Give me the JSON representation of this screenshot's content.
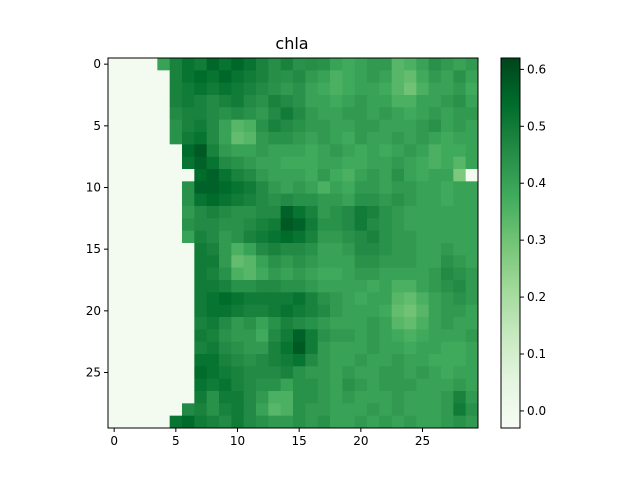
{
  "chart_data": {
    "type": "heatmap",
    "title": "chla",
    "xlabel": "",
    "ylabel": "",
    "rows": 30,
    "cols": 30,
    "x_ticks": [
      0,
      5,
      10,
      15,
      20,
      25
    ],
    "y_ticks": [
      0,
      5,
      10,
      15,
      20,
      25
    ],
    "colormap": "Greens",
    "colormap_stops": [
      "#f7fcf5",
      "#e5f5e0",
      "#c7e9c0",
      "#a1d99b",
      "#74c476",
      "#41ab5d",
      "#238b45",
      "#006d2c",
      "#00441b"
    ],
    "vmin": -0.03,
    "vmax": 0.62,
    "colorbar_ticks": [
      "0.0",
      "0.1",
      "0.2",
      "0.3",
      "0.4",
      "0.5",
      "0.6"
    ],
    "values": [
      [
        -0.01,
        -0.01,
        -0.01,
        -0.01,
        0.4,
        0.48,
        0.52,
        0.5,
        0.55,
        0.52,
        0.55,
        0.52,
        0.48,
        0.45,
        0.48,
        0.44,
        0.45,
        0.44,
        0.4,
        0.38,
        0.4,
        0.42,
        0.42,
        0.34,
        0.36,
        0.4,
        0.44,
        0.42,
        0.4,
        0.42
      ],
      [
        -0.01,
        -0.01,
        -0.01,
        -0.01,
        -0.01,
        0.48,
        0.52,
        0.54,
        0.52,
        0.55,
        0.52,
        0.5,
        0.48,
        0.45,
        0.44,
        0.46,
        0.42,
        0.4,
        0.36,
        0.38,
        0.4,
        0.42,
        0.4,
        0.34,
        0.32,
        0.38,
        0.42,
        0.4,
        0.44,
        0.4
      ],
      [
        -0.01,
        -0.01,
        -0.01,
        -0.01,
        -0.01,
        0.48,
        0.5,
        0.52,
        0.5,
        0.52,
        0.5,
        0.48,
        0.46,
        0.44,
        0.42,
        0.44,
        0.4,
        0.38,
        0.36,
        0.38,
        0.4,
        0.4,
        0.38,
        0.34,
        0.3,
        0.36,
        0.4,
        0.4,
        0.42,
        0.38
      ],
      [
        -0.01,
        -0.01,
        -0.01,
        -0.01,
        -0.01,
        0.48,
        0.5,
        0.48,
        0.46,
        0.48,
        0.5,
        0.46,
        0.44,
        0.48,
        0.46,
        0.44,
        0.4,
        0.4,
        0.38,
        0.4,
        0.42,
        0.4,
        0.4,
        0.36,
        0.36,
        0.4,
        0.4,
        0.42,
        0.44,
        0.4
      ],
      [
        -0.01,
        -0.01,
        -0.01,
        -0.01,
        -0.01,
        0.46,
        0.48,
        0.48,
        0.46,
        0.44,
        0.46,
        0.44,
        0.42,
        0.46,
        0.5,
        0.46,
        0.42,
        0.4,
        0.4,
        0.42,
        0.42,
        0.4,
        0.42,
        0.4,
        0.38,
        0.4,
        0.42,
        0.4,
        0.42,
        0.42
      ],
      [
        -0.01,
        -0.01,
        -0.01,
        -0.01,
        -0.01,
        0.44,
        0.48,
        0.5,
        0.46,
        0.4,
        0.34,
        0.36,
        0.44,
        0.48,
        0.46,
        0.44,
        0.42,
        0.42,
        0.4,
        0.4,
        0.42,
        0.42,
        0.4,
        0.4,
        0.4,
        0.42,
        0.44,
        0.4,
        0.42,
        0.4
      ],
      [
        -0.01,
        -0.01,
        -0.01,
        -0.01,
        -0.01,
        0.44,
        0.5,
        0.52,
        0.46,
        0.4,
        0.32,
        0.34,
        0.42,
        0.44,
        0.44,
        0.42,
        0.4,
        0.42,
        0.4,
        0.38,
        0.42,
        0.4,
        0.4,
        0.42,
        0.4,
        0.42,
        0.4,
        0.38,
        0.4,
        0.4
      ],
      [
        -0.01,
        -0.01,
        -0.01,
        -0.01,
        -0.01,
        -0.01,
        0.54,
        0.58,
        0.48,
        0.42,
        0.4,
        0.4,
        0.42,
        0.4,
        0.4,
        0.4,
        0.38,
        0.4,
        0.42,
        0.4,
        0.38,
        0.4,
        0.38,
        0.4,
        0.42,
        0.4,
        0.36,
        0.38,
        0.38,
        0.4
      ],
      [
        -0.01,
        -0.01,
        -0.01,
        -0.01,
        -0.01,
        -0.01,
        0.52,
        0.56,
        0.52,
        0.46,
        0.44,
        0.42,
        0.4,
        0.4,
        0.38,
        0.38,
        0.38,
        0.4,
        0.4,
        0.38,
        0.38,
        0.4,
        0.4,
        0.42,
        0.4,
        0.38,
        0.36,
        0.38,
        0.34,
        0.4
      ],
      [
        -0.01,
        -0.01,
        -0.01,
        -0.01,
        -0.01,
        -0.01,
        -0.01,
        0.54,
        0.56,
        0.52,
        0.48,
        0.46,
        0.42,
        0.4,
        0.4,
        0.4,
        0.38,
        0.42,
        0.38,
        0.36,
        0.4,
        0.42,
        0.4,
        0.44,
        0.4,
        0.38,
        0.4,
        0.4,
        0.28,
        -0.01
      ],
      [
        -0.01,
        -0.01,
        -0.01,
        -0.01,
        -0.01,
        -0.01,
        0.44,
        0.56,
        0.56,
        0.54,
        0.52,
        0.5,
        0.46,
        0.42,
        0.4,
        0.42,
        0.4,
        0.36,
        0.4,
        0.38,
        0.42,
        0.42,
        0.4,
        0.42,
        0.42,
        0.4,
        0.4,
        0.38,
        0.4,
        0.4
      ],
      [
        -0.01,
        -0.01,
        -0.01,
        -0.01,
        -0.01,
        -0.01,
        0.44,
        0.52,
        0.54,
        0.52,
        0.5,
        0.48,
        0.46,
        0.44,
        0.46,
        0.44,
        0.44,
        0.42,
        0.42,
        0.4,
        0.44,
        0.44,
        0.42,
        0.44,
        0.42,
        0.4,
        0.4,
        0.38,
        0.4,
        0.4
      ],
      [
        -0.01,
        -0.01,
        -0.01,
        -0.01,
        -0.01,
        -0.01,
        0.42,
        0.46,
        0.48,
        0.46,
        0.44,
        0.44,
        0.46,
        0.46,
        0.56,
        0.52,
        0.48,
        0.42,
        0.44,
        0.46,
        0.5,
        0.48,
        0.44,
        0.42,
        0.4,
        0.4,
        0.4,
        0.4,
        0.4,
        0.4
      ],
      [
        -0.01,
        -0.01,
        -0.01,
        -0.01,
        -0.01,
        -0.01,
        0.44,
        0.46,
        0.46,
        0.44,
        0.44,
        0.46,
        0.48,
        0.5,
        0.58,
        0.56,
        0.5,
        0.44,
        0.44,
        0.46,
        0.5,
        0.46,
        0.44,
        0.42,
        0.4,
        0.4,
        0.4,
        0.4,
        0.4,
        0.4
      ],
      [
        -0.01,
        -0.01,
        -0.01,
        -0.01,
        -0.01,
        -0.01,
        0.4,
        0.48,
        0.46,
        0.42,
        0.44,
        0.48,
        0.5,
        0.52,
        0.54,
        0.52,
        0.48,
        0.42,
        0.42,
        0.44,
        0.46,
        0.48,
        0.44,
        0.42,
        0.42,
        0.4,
        0.4,
        0.4,
        0.4,
        0.4
      ],
      [
        -0.01,
        -0.01,
        -0.01,
        -0.01,
        -0.01,
        -0.01,
        -0.01,
        0.5,
        0.48,
        0.42,
        0.36,
        0.4,
        0.46,
        0.48,
        0.46,
        0.46,
        0.44,
        0.4,
        0.4,
        0.42,
        0.46,
        0.46,
        0.44,
        0.42,
        0.42,
        0.4,
        0.4,
        0.42,
        0.4,
        0.4
      ],
      [
        -0.01,
        -0.01,
        -0.01,
        -0.01,
        -0.01,
        -0.01,
        -0.01,
        0.5,
        0.5,
        0.42,
        0.32,
        0.34,
        0.4,
        0.44,
        0.42,
        0.44,
        0.42,
        0.4,
        0.4,
        0.4,
        0.44,
        0.44,
        0.42,
        0.42,
        0.42,
        0.4,
        0.4,
        0.44,
        0.42,
        0.4
      ],
      [
        -0.01,
        -0.01,
        -0.01,
        -0.01,
        -0.01,
        -0.01,
        -0.01,
        0.5,
        0.48,
        0.44,
        0.36,
        0.34,
        0.38,
        0.42,
        0.4,
        0.42,
        0.4,
        0.38,
        0.38,
        0.4,
        0.42,
        0.42,
        0.4,
        0.4,
        0.4,
        0.4,
        0.42,
        0.46,
        0.44,
        0.42
      ],
      [
        -0.01,
        -0.01,
        -0.01,
        -0.01,
        -0.01,
        -0.01,
        -0.01,
        0.5,
        0.5,
        0.48,
        0.44,
        0.44,
        0.46,
        0.46,
        0.44,
        0.44,
        0.42,
        0.4,
        0.4,
        0.4,
        0.4,
        0.38,
        0.4,
        0.36,
        0.36,
        0.4,
        0.42,
        0.44,
        0.46,
        0.42
      ],
      [
        -0.01,
        -0.01,
        -0.01,
        -0.01,
        -0.01,
        -0.01,
        -0.01,
        0.5,
        0.52,
        0.54,
        0.52,
        0.5,
        0.5,
        0.5,
        0.5,
        0.52,
        0.48,
        0.44,
        0.42,
        0.4,
        0.38,
        0.4,
        0.4,
        0.34,
        0.32,
        0.36,
        0.4,
        0.42,
        0.44,
        0.42
      ],
      [
        -0.01,
        -0.01,
        -0.01,
        -0.01,
        -0.01,
        -0.01,
        -0.01,
        0.5,
        0.52,
        0.52,
        0.5,
        0.48,
        0.48,
        0.5,
        0.52,
        0.5,
        0.48,
        0.46,
        0.42,
        0.4,
        0.4,
        0.4,
        0.38,
        0.32,
        0.3,
        0.34,
        0.4,
        0.42,
        0.42,
        0.4
      ],
      [
        -0.01,
        -0.01,
        -0.01,
        -0.01,
        -0.01,
        -0.01,
        -0.01,
        0.48,
        0.5,
        0.46,
        0.42,
        0.44,
        0.4,
        0.44,
        0.48,
        0.46,
        0.44,
        0.42,
        0.4,
        0.4,
        0.4,
        0.42,
        0.4,
        0.34,
        0.32,
        0.36,
        0.4,
        0.42,
        0.4,
        0.4
      ],
      [
        -0.01,
        -0.01,
        -0.01,
        -0.01,
        -0.01,
        -0.01,
        -0.01,
        0.5,
        0.48,
        0.44,
        0.42,
        0.42,
        0.38,
        0.46,
        0.5,
        0.56,
        0.5,
        0.44,
        0.42,
        0.42,
        0.4,
        0.42,
        0.4,
        0.38,
        0.36,
        0.38,
        0.4,
        0.4,
        0.4,
        0.42
      ],
      [
        -0.01,
        -0.01,
        -0.01,
        -0.01,
        -0.01,
        -0.01,
        -0.01,
        0.48,
        0.5,
        0.46,
        0.44,
        0.42,
        0.42,
        0.48,
        0.52,
        0.58,
        0.5,
        0.42,
        0.4,
        0.4,
        0.4,
        0.42,
        0.4,
        0.4,
        0.38,
        0.4,
        0.4,
        0.38,
        0.38,
        0.4
      ],
      [
        -0.01,
        -0.01,
        -0.01,
        -0.01,
        -0.01,
        -0.01,
        -0.01,
        0.52,
        0.52,
        0.48,
        0.46,
        0.44,
        0.46,
        0.48,
        0.5,
        0.52,
        0.46,
        0.42,
        0.4,
        0.4,
        0.42,
        0.4,
        0.4,
        0.42,
        0.4,
        0.4,
        0.38,
        0.38,
        0.38,
        0.4
      ],
      [
        -0.01,
        -0.01,
        -0.01,
        -0.01,
        -0.01,
        -0.01,
        -0.01,
        0.54,
        0.52,
        0.5,
        0.48,
        0.46,
        0.46,
        0.46,
        0.48,
        0.44,
        0.42,
        0.42,
        0.4,
        0.42,
        0.4,
        0.4,
        0.42,
        0.42,
        0.4,
        0.42,
        0.4,
        0.38,
        0.4,
        0.4
      ],
      [
        -0.01,
        -0.01,
        -0.01,
        -0.01,
        -0.01,
        -0.01,
        -0.01,
        0.52,
        0.5,
        0.52,
        0.48,
        0.46,
        0.44,
        0.44,
        0.4,
        0.44,
        0.44,
        0.42,
        0.4,
        0.44,
        0.42,
        0.4,
        0.42,
        0.42,
        0.42,
        0.4,
        0.4,
        0.4,
        0.42,
        0.4
      ],
      [
        -0.01,
        -0.01,
        -0.01,
        -0.01,
        -0.01,
        -0.01,
        -0.01,
        0.5,
        0.44,
        0.5,
        0.5,
        0.46,
        0.42,
        0.36,
        0.36,
        0.44,
        0.44,
        0.42,
        0.4,
        0.42,
        0.4,
        0.4,
        0.4,
        0.42,
        0.4,
        0.4,
        0.4,
        0.42,
        0.48,
        0.42
      ],
      [
        -0.01,
        -0.01,
        -0.01,
        -0.01,
        -0.01,
        -0.01,
        0.46,
        0.48,
        0.44,
        0.48,
        0.5,
        0.46,
        0.4,
        0.34,
        0.36,
        0.44,
        0.42,
        0.42,
        0.4,
        0.4,
        0.4,
        0.42,
        0.4,
        0.42,
        0.4,
        0.4,
        0.4,
        0.42,
        0.5,
        0.44
      ],
      [
        -0.01,
        -0.01,
        -0.01,
        -0.01,
        -0.01,
        0.52,
        0.54,
        0.5,
        0.48,
        0.46,
        0.5,
        0.46,
        0.44,
        0.42,
        0.42,
        0.44,
        0.42,
        0.44,
        0.4,
        0.4,
        0.42,
        0.4,
        0.42,
        0.4,
        0.42,
        0.4,
        0.4,
        0.42,
        0.44,
        0.42
      ]
    ]
  }
}
